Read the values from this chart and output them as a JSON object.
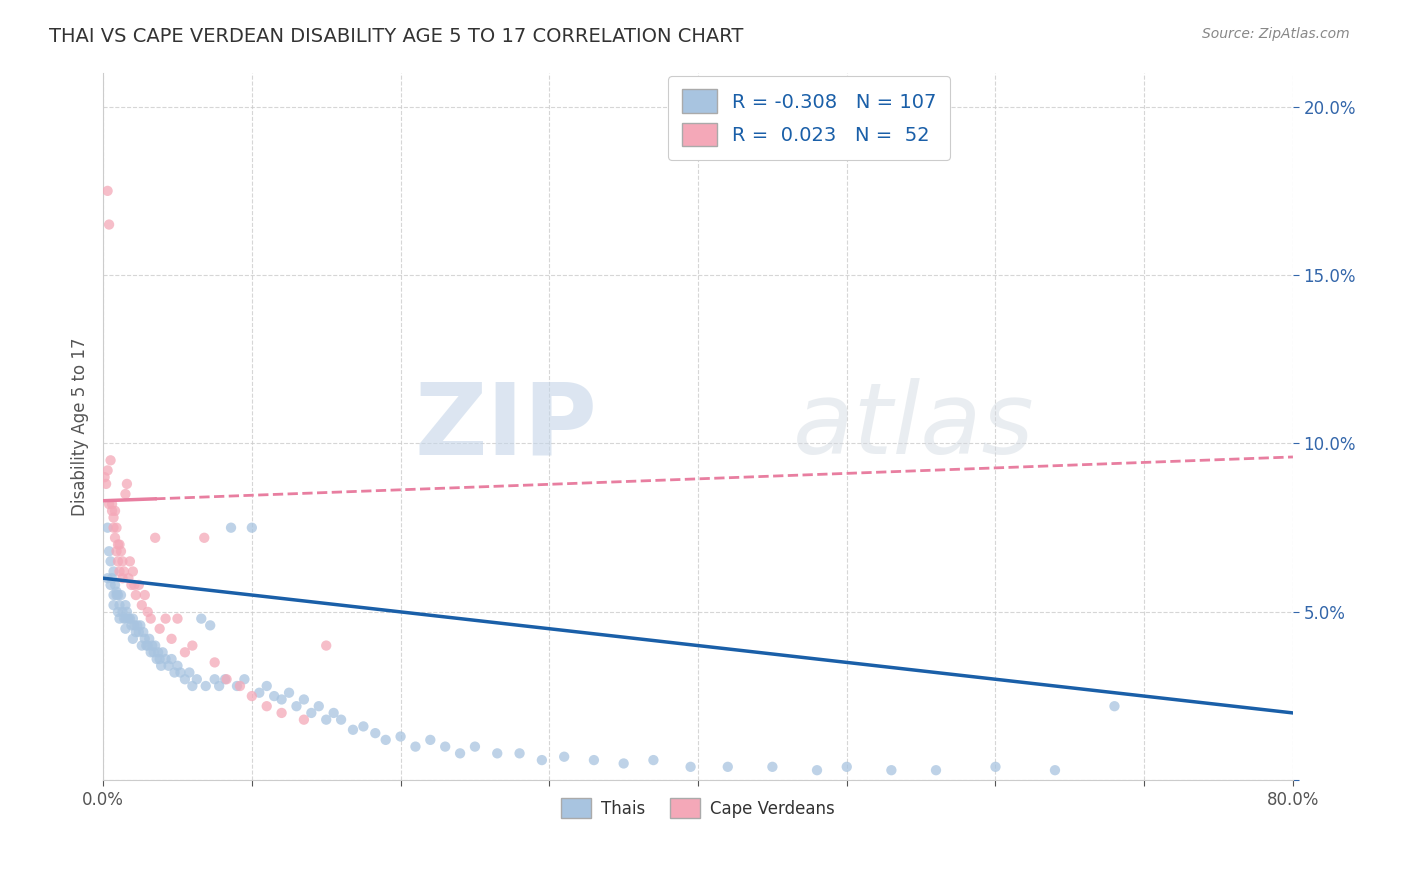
{
  "title": "THAI VS CAPE VERDEAN DISABILITY AGE 5 TO 17 CORRELATION CHART",
  "source": "Source: ZipAtlas.com",
  "ylabel": "Disability Age 5 to 17",
  "xlim": [
    0.0,
    0.8
  ],
  "ylim": [
    0.0,
    0.21
  ],
  "xticks": [
    0.0,
    0.1,
    0.2,
    0.3,
    0.4,
    0.5,
    0.6,
    0.7,
    0.8
  ],
  "yticks": [
    0.0,
    0.05,
    0.1,
    0.15,
    0.2
  ],
  "thai_color": "#a8c4e0",
  "cape_color": "#f4a8b8",
  "thai_line_color": "#1a5fa8",
  "cape_line_color": "#e87ea0",
  "thai_R": -0.308,
  "thai_N": 107,
  "cape_R": 0.023,
  "cape_N": 52,
  "watermark_zip": "ZIP",
  "watermark_atlas": "atlas",
  "background_color": "#ffffff",
  "grid_color": "#cccccc",
  "thai_line_x0": 0.0,
  "thai_line_y0": 0.06,
  "thai_line_x1": 0.8,
  "thai_line_y1": 0.02,
  "cape_line_x0": 0.0,
  "cape_line_y0": 0.083,
  "cape_line_x1": 0.8,
  "cape_line_y1": 0.096,
  "thai_scatter_x": [
    0.003,
    0.004,
    0.005,
    0.006,
    0.007,
    0.007,
    0.008,
    0.009,
    0.01,
    0.01,
    0.011,
    0.012,
    0.013,
    0.014,
    0.015,
    0.015,
    0.016,
    0.017,
    0.018,
    0.019,
    0.02,
    0.021,
    0.022,
    0.023,
    0.024,
    0.025,
    0.026,
    0.027,
    0.028,
    0.029,
    0.03,
    0.031,
    0.032,
    0.033,
    0.034,
    0.035,
    0.036,
    0.037,
    0.038,
    0.039,
    0.04,
    0.042,
    0.044,
    0.046,
    0.048,
    0.05,
    0.052,
    0.055,
    0.058,
    0.06,
    0.063,
    0.066,
    0.069,
    0.072,
    0.075,
    0.078,
    0.082,
    0.086,
    0.09,
    0.095,
    0.1,
    0.105,
    0.11,
    0.115,
    0.12,
    0.125,
    0.13,
    0.135,
    0.14,
    0.145,
    0.15,
    0.155,
    0.16,
    0.168,
    0.175,
    0.183,
    0.19,
    0.2,
    0.21,
    0.22,
    0.23,
    0.24,
    0.25,
    0.265,
    0.28,
    0.295,
    0.31,
    0.33,
    0.35,
    0.37,
    0.395,
    0.42,
    0.45,
    0.48,
    0.5,
    0.53,
    0.56,
    0.6,
    0.64,
    0.68,
    0.003,
    0.005,
    0.007,
    0.009,
    0.011,
    0.015,
    0.02
  ],
  "thai_scatter_y": [
    0.075,
    0.068,
    0.065,
    0.06,
    0.062,
    0.055,
    0.058,
    0.055,
    0.055,
    0.05,
    0.052,
    0.055,
    0.05,
    0.048,
    0.052,
    0.048,
    0.05,
    0.048,
    0.048,
    0.046,
    0.048,
    0.046,
    0.044,
    0.046,
    0.044,
    0.046,
    0.04,
    0.044,
    0.042,
    0.04,
    0.04,
    0.042,
    0.038,
    0.04,
    0.038,
    0.04,
    0.036,
    0.038,
    0.036,
    0.034,
    0.038,
    0.036,
    0.034,
    0.036,
    0.032,
    0.034,
    0.032,
    0.03,
    0.032,
    0.028,
    0.03,
    0.048,
    0.028,
    0.046,
    0.03,
    0.028,
    0.03,
    0.075,
    0.028,
    0.03,
    0.075,
    0.026,
    0.028,
    0.025,
    0.024,
    0.026,
    0.022,
    0.024,
    0.02,
    0.022,
    0.018,
    0.02,
    0.018,
    0.015,
    0.016,
    0.014,
    0.012,
    0.013,
    0.01,
    0.012,
    0.01,
    0.008,
    0.01,
    0.008,
    0.008,
    0.006,
    0.007,
    0.006,
    0.005,
    0.006,
    0.004,
    0.004,
    0.004,
    0.003,
    0.004,
    0.003,
    0.003,
    0.004,
    0.003,
    0.022,
    0.06,
    0.058,
    0.052,
    0.056,
    0.048,
    0.045,
    0.042
  ],
  "cape_scatter_x": [
    0.001,
    0.002,
    0.003,
    0.003,
    0.004,
    0.004,
    0.005,
    0.006,
    0.006,
    0.007,
    0.007,
    0.008,
    0.008,
    0.009,
    0.009,
    0.01,
    0.01,
    0.011,
    0.011,
    0.012,
    0.013,
    0.013,
    0.014,
    0.015,
    0.016,
    0.017,
    0.018,
    0.019,
    0.02,
    0.021,
    0.022,
    0.024,
    0.026,
    0.028,
    0.03,
    0.032,
    0.035,
    0.038,
    0.042,
    0.046,
    0.05,
    0.055,
    0.06,
    0.068,
    0.075,
    0.083,
    0.092,
    0.1,
    0.11,
    0.12,
    0.135,
    0.15
  ],
  "cape_scatter_y": [
    0.09,
    0.088,
    0.175,
    0.092,
    0.165,
    0.082,
    0.095,
    0.082,
    0.08,
    0.075,
    0.078,
    0.08,
    0.072,
    0.075,
    0.068,
    0.07,
    0.065,
    0.07,
    0.062,
    0.068,
    0.065,
    0.06,
    0.062,
    0.085,
    0.088,
    0.06,
    0.065,
    0.058,
    0.062,
    0.058,
    0.055,
    0.058,
    0.052,
    0.055,
    0.05,
    0.048,
    0.072,
    0.045,
    0.048,
    0.042,
    0.048,
    0.038,
    0.04,
    0.072,
    0.035,
    0.03,
    0.028,
    0.025,
    0.022,
    0.02,
    0.018,
    0.04
  ]
}
